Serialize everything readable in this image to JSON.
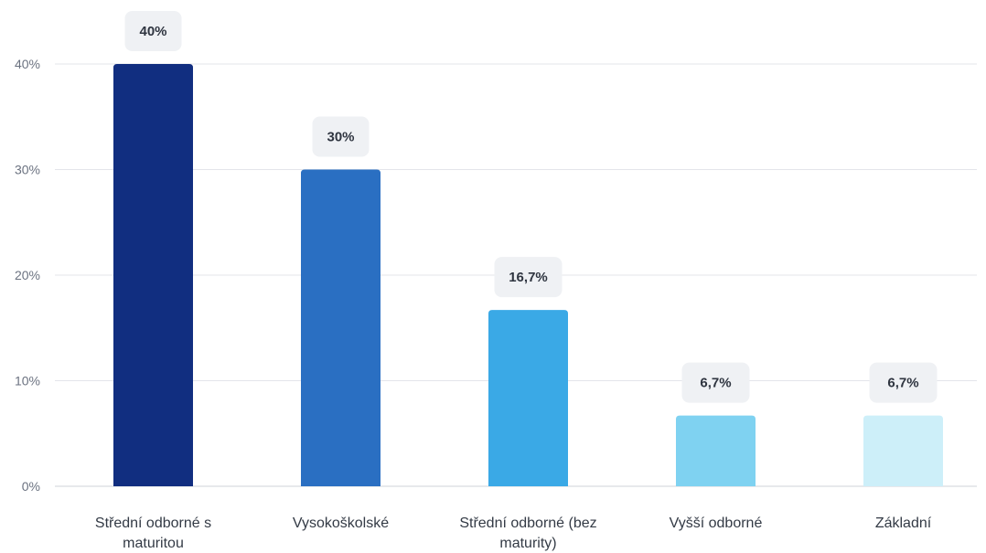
{
  "chart_data": {
    "type": "bar",
    "categories": [
      [
        "Střední odborné s",
        "maturitou"
      ],
      [
        "Vysokoškolské"
      ],
      [
        "Střední odborné (bez",
        "maturity)"
      ],
      [
        "Vyšší odborné"
      ],
      [
        "Základní"
      ]
    ],
    "values": [
      40,
      30,
      16.7,
      6.7,
      6.7
    ],
    "data_labels": [
      "40%",
      "30%",
      "16,7%",
      "6,7%",
      "6,7%"
    ],
    "colors": [
      "#112e80",
      "#2a6fc2",
      "#3aa9e6",
      "#7fd2f1",
      "#cdeff9"
    ],
    "yticks": [
      0,
      10,
      20,
      30,
      40
    ],
    "ytick_labels": [
      "0%",
      "10%",
      "20%",
      "30%",
      "40%"
    ],
    "ylim": [
      0,
      40
    ],
    "grid": true,
    "legend": "none"
  }
}
